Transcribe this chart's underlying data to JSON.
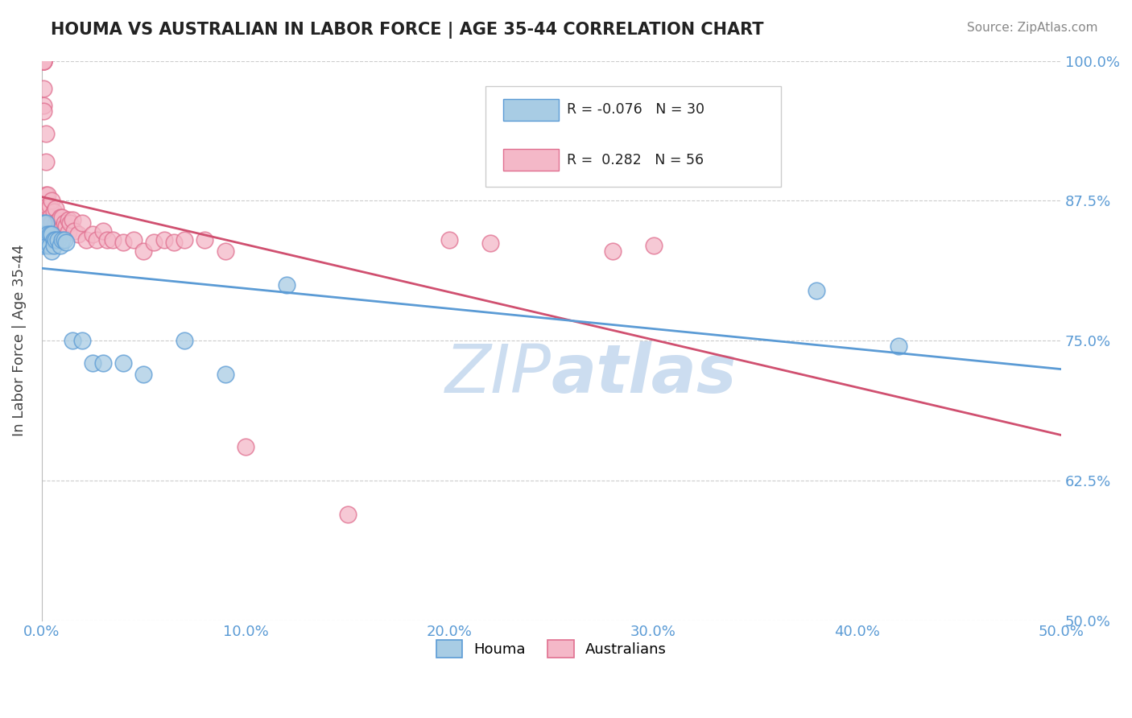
{
  "title": "HOUMA VS AUSTRALIAN IN LABOR FORCE | AGE 35-44 CORRELATION CHART",
  "source": "Source: ZipAtlas.com",
  "ylabel": "In Labor Force | Age 35-44",
  "xlim": [
    0.0,
    0.5
  ],
  "ylim": [
    0.5,
    1.0
  ],
  "xticks": [
    0.0,
    0.1,
    0.2,
    0.3,
    0.4,
    0.5
  ],
  "yticks": [
    0.5,
    0.625,
    0.75,
    0.875,
    1.0
  ],
  "xticklabels": [
    "0.0%",
    "10.0%",
    "20.0%",
    "30.0%",
    "40.0%",
    "50.0%"
  ],
  "yticklabels": [
    "50.0%",
    "62.5%",
    "75.0%",
    "87.5%",
    "100.0%"
  ],
  "houma_R": -0.076,
  "houma_N": 30,
  "aus_R": 0.282,
  "aus_N": 56,
  "houma_color": "#a8cce4",
  "aus_color": "#f4b8c8",
  "houma_edge_color": "#5b9bd5",
  "aus_edge_color": "#e07090",
  "houma_line_color": "#5b9bd5",
  "aus_line_color": "#d05070",
  "watermark_color": "#ccddf0",
  "legend_houma": "Houma",
  "legend_aus": "Australians",
  "title_color": "#222222",
  "source_color": "#888888",
  "tick_color": "#5b9bd5",
  "ylabel_color": "#444444",
  "houma_x": [
    0.001,
    0.001,
    0.001,
    0.002,
    0.002,
    0.003,
    0.003,
    0.004,
    0.004,
    0.005,
    0.005,
    0.006,
    0.006,
    0.007,
    0.008,
    0.009,
    0.01,
    0.011,
    0.012,
    0.015,
    0.02,
    0.025,
    0.03,
    0.04,
    0.05,
    0.07,
    0.09,
    0.12,
    0.38,
    0.42
  ],
  "houma_y": [
    0.855,
    0.845,
    0.835,
    0.855,
    0.84,
    0.845,
    0.835,
    0.845,
    0.835,
    0.845,
    0.83,
    0.84,
    0.835,
    0.84,
    0.84,
    0.835,
    0.84,
    0.84,
    0.838,
    0.75,
    0.75,
    0.73,
    0.73,
    0.73,
    0.72,
    0.75,
    0.72,
    0.8,
    0.795,
    0.745
  ],
  "aus_x": [
    0.001,
    0.001,
    0.001,
    0.001,
    0.001,
    0.001,
    0.001,
    0.002,
    0.002,
    0.002,
    0.003,
    0.003,
    0.003,
    0.004,
    0.004,
    0.005,
    0.005,
    0.006,
    0.006,
    0.007,
    0.007,
    0.008,
    0.009,
    0.009,
    0.01,
    0.01,
    0.011,
    0.012,
    0.013,
    0.013,
    0.014,
    0.015,
    0.016,
    0.018,
    0.02,
    0.022,
    0.025,
    0.027,
    0.03,
    0.032,
    0.035,
    0.04,
    0.045,
    0.05,
    0.055,
    0.06,
    0.065,
    0.07,
    0.08,
    0.09,
    0.1,
    0.15,
    0.2,
    0.22,
    0.28,
    0.3
  ],
  "aus_y": [
    1.0,
    1.0,
    1.0,
    1.0,
    0.975,
    0.96,
    0.955,
    0.935,
    0.91,
    0.88,
    0.88,
    0.865,
    0.87,
    0.87,
    0.86,
    0.875,
    0.855,
    0.865,
    0.845,
    0.868,
    0.855,
    0.857,
    0.86,
    0.845,
    0.86,
    0.85,
    0.855,
    0.852,
    0.847,
    0.858,
    0.855,
    0.858,
    0.848,
    0.845,
    0.855,
    0.84,
    0.845,
    0.84,
    0.848,
    0.84,
    0.84,
    0.838,
    0.84,
    0.83,
    0.838,
    0.84,
    0.838,
    0.84,
    0.84,
    0.83,
    0.655,
    0.595,
    0.84,
    0.837,
    0.83,
    0.835
  ]
}
